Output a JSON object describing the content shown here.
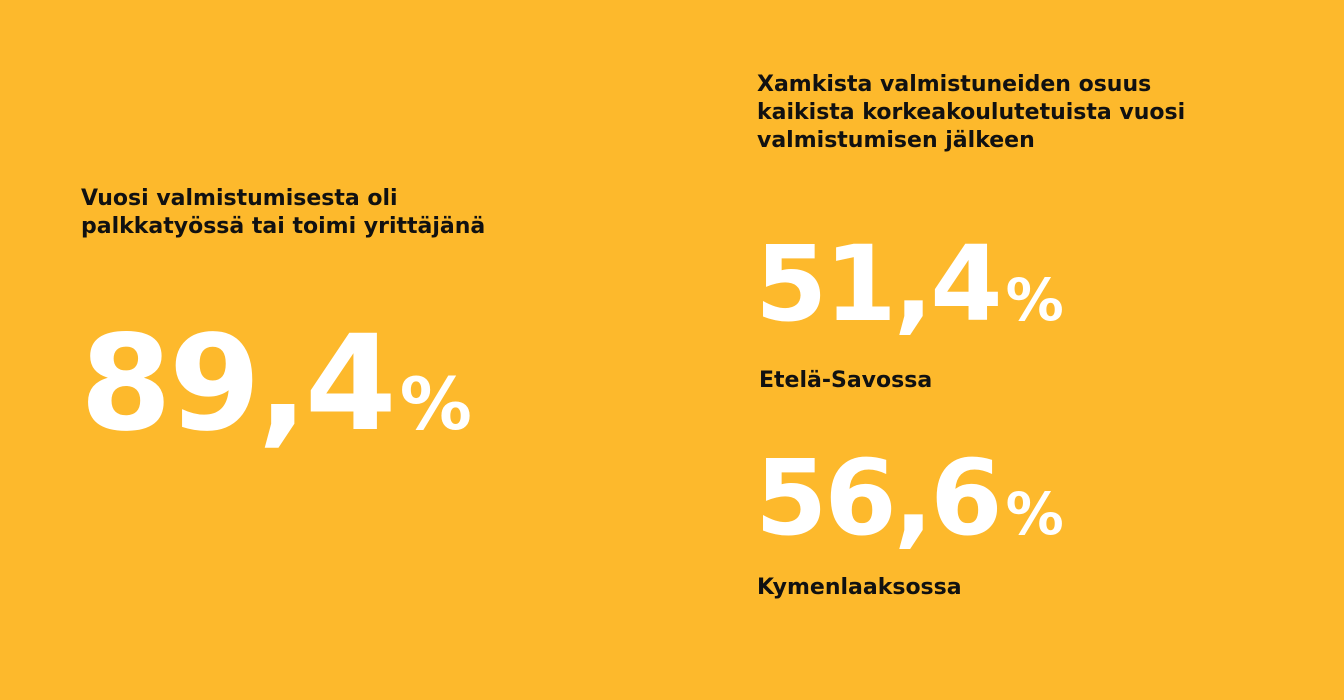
{
  "colors": {
    "background": "#FDB92C",
    "heading_text": "#111111",
    "stat_text": "#FFFFFF"
  },
  "left": {
    "heading_line1": "Vuosi valmistumisesta oli",
    "heading_line2": "palkkatyössä tai toimi yrittäjänä",
    "value": "89,4",
    "unit": "%"
  },
  "right": {
    "heading_line1": "Xamkista valmistuneiden osuus",
    "heading_line2": "kaikista korkeakoulutetuista vuosi",
    "heading_line3": "valmistumisen jälkeen",
    "stats": [
      {
        "value": "51,4",
        "unit": "%",
        "region": "Etelä-Savossa"
      },
      {
        "value": "56,6",
        "unit": "%",
        "region": "Kymenlaaksossa"
      }
    ]
  }
}
